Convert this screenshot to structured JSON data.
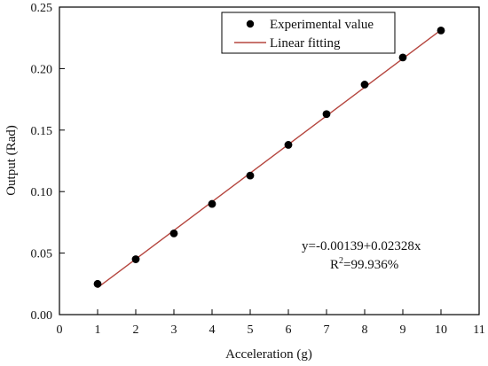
{
  "colors": {
    "fit_line": "#b5463f",
    "points": "#000000",
    "axis": "#000000",
    "background": "#ffffff"
  },
  "chart_data": {
    "type": "scatter",
    "xlabel": "Acceleration (g)",
    "ylabel": "Output (Rad)",
    "xlim": [
      0,
      11
    ],
    "ylim": [
      0.0,
      0.25
    ],
    "x_ticks": [
      "0",
      "1",
      "2",
      "3",
      "4",
      "5",
      "6",
      "7",
      "8",
      "9",
      "10",
      "11"
    ],
    "y_ticks": [
      "0.00",
      "0.05",
      "0.10",
      "0.15",
      "0.20",
      "0.25"
    ],
    "grid": false,
    "legend_position": "top-right",
    "series": [
      {
        "name": "Experimental value",
        "type": "scatter",
        "x": [
          1,
          2,
          3,
          4,
          5,
          6,
          7,
          8,
          9,
          10
        ],
        "y": [
          0.025,
          0.045,
          0.066,
          0.09,
          0.113,
          0.138,
          0.163,
          0.187,
          0.209,
          0.231
        ]
      },
      {
        "name": "Linear fitting",
        "type": "line",
        "intercept": -0.00139,
        "slope": 0.02328,
        "x_range": [
          1,
          10
        ]
      }
    ],
    "annotation": {
      "equation": "y=-0.00139+0.02328x",
      "r2_prefix": "R",
      "r2_sup": "2",
      "r2_value": "=99.936%"
    }
  }
}
